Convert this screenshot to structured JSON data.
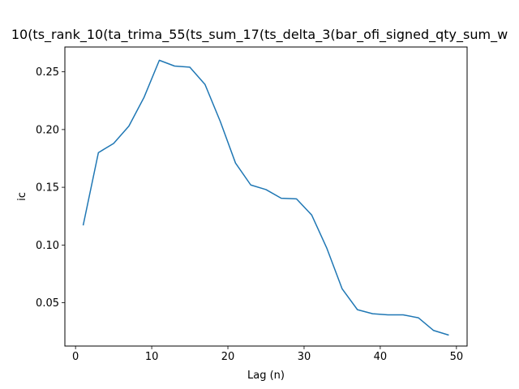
{
  "chart_data": {
    "type": "line",
    "title": "10(ts_rank_10(ta_trima_55(ts_sum_17(ts_delta_3(bar_ofi_signed_qty_sum_w",
    "xlabel": "Lag (n)",
    "ylabel": "ic",
    "xlim": [
      -1.4,
      51.4
    ],
    "ylim": [
      0.0125,
      0.2715
    ],
    "xticks": [
      0,
      10,
      20,
      30,
      40,
      50
    ],
    "yticks": [
      0.05,
      0.1,
      0.15,
      0.2,
      0.25
    ],
    "ytick_labels": [
      "0.05",
      "0.10",
      "0.15",
      "0.20",
      "0.25"
    ],
    "grid": false,
    "series": [
      {
        "color": "#1f77b4",
        "x": [
          1,
          3,
          5,
          7,
          9,
          11,
          13,
          15,
          17,
          19,
          21,
          23,
          25,
          27,
          29,
          31,
          33,
          35,
          37,
          39,
          41,
          43,
          45,
          47,
          49
        ],
        "y": [
          0.117,
          0.18,
          0.188,
          0.203,
          0.228,
          0.26,
          0.255,
          0.254,
          0.239,
          0.207,
          0.171,
          0.152,
          0.148,
          0.1405,
          0.14,
          0.126,
          0.097,
          0.062,
          0.044,
          0.0405,
          0.0395,
          0.0395,
          0.037,
          0.026,
          0.022
        ]
      }
    ]
  }
}
